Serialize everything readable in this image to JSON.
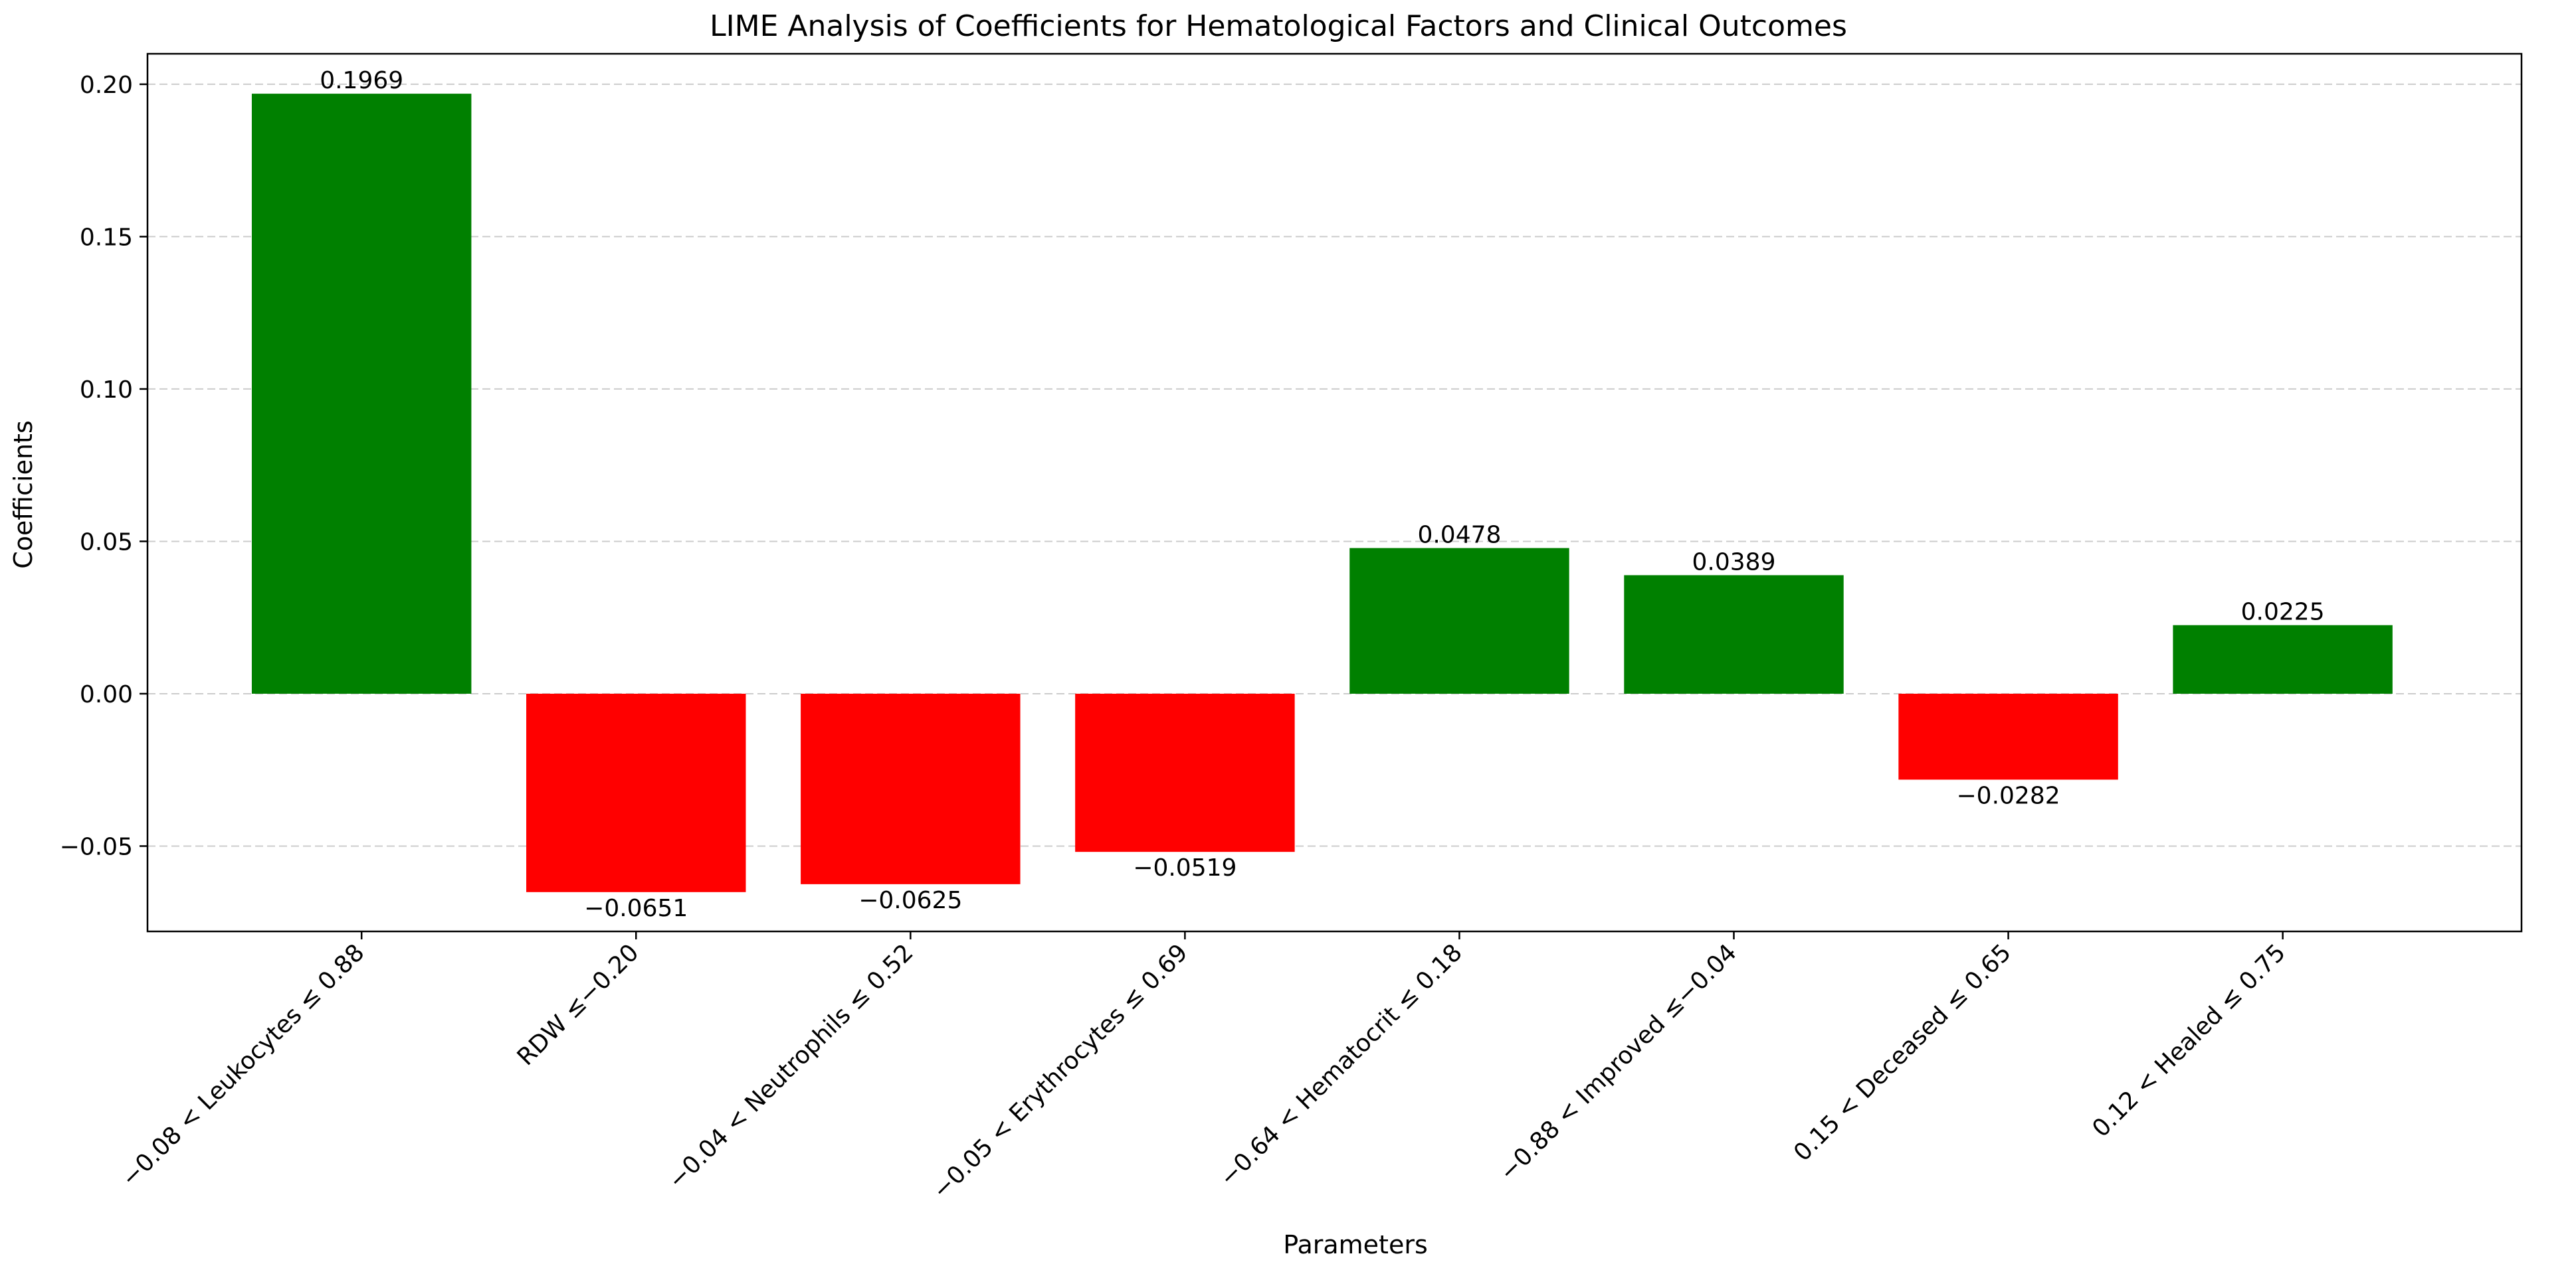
{
  "chart_data": {
    "type": "bar",
    "title": "LIME Analysis of Coefficients for Hematological Factors and Clinical Outcomes",
    "xlabel": "Parameters",
    "ylabel": "Coefficients",
    "categories": [
      "−0.08 < Leukocytes ≤ 0.88",
      "RDW ≤−0.20",
      "−0.04 < Neutrophils ≤ 0.52",
      "−0.05 < Erythrocytes ≤ 0.69",
      "−0.64 < Hematocrit ≤ 0.18",
      "−0.88 < Improved ≤−0.04",
      "0.15 < Deceased ≤ 0.65",
      "0.12 < Healed ≤ 0.75"
    ],
    "values": [
      0.1969,
      -0.0651,
      -0.0625,
      -0.0519,
      0.0478,
      0.0389,
      -0.0282,
      0.0225
    ],
    "value_labels": [
      "0.1969",
      "−0.0651",
      "−0.0625",
      "−0.0519",
      "0.0478",
      "0.0389",
      "−0.0282",
      "0.0225"
    ],
    "ylim": [
      -0.078,
      0.21
    ],
    "yticks": [
      -0.05,
      0.0,
      0.05,
      0.1,
      0.15,
      0.2
    ],
    "ytick_labels": [
      "−0.05",
      "0.00",
      "0.05",
      "0.10",
      "0.15",
      "0.20"
    ],
    "grid": true,
    "colors": {
      "positive": "#008000",
      "negative": "#ff0000",
      "grid": "#cccccc",
      "axis": "#000000"
    }
  }
}
